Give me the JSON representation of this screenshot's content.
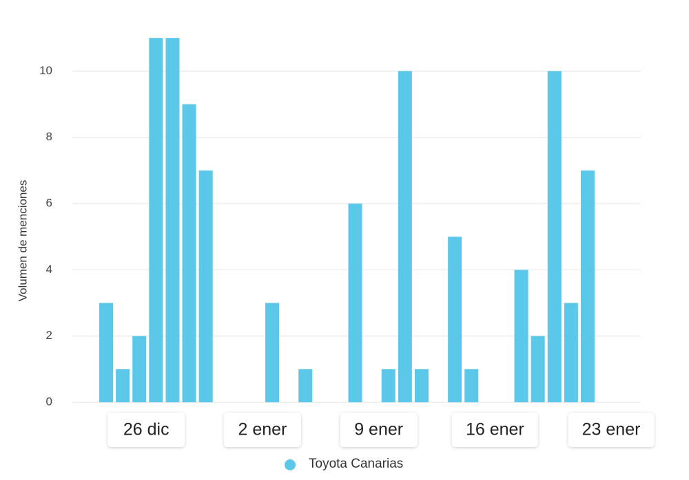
{
  "chart_data": {
    "type": "bar",
    "y_axis_label": "Volumen de menciones",
    "categories": [
      null,
      null,
      "26 dic",
      null,
      null,
      null,
      null,
      null,
      null,
      "2 ener",
      null,
      null,
      null,
      null,
      null,
      null,
      "9 ener",
      null,
      null,
      null,
      null,
      null,
      null,
      "16 ener",
      null,
      null,
      null,
      null,
      null,
      null,
      "23 ener"
    ],
    "series": [
      {
        "name": "Toyota Canarias",
        "color": "#5bc8ea",
        "values": [
          3,
          1,
          2,
          11,
          11,
          9,
          7,
          0,
          0,
          0,
          3,
          0,
          1,
          0,
          0,
          6,
          0,
          1,
          10,
          1,
          0,
          5,
          1,
          0,
          0,
          4,
          2,
          10,
          3,
          7,
          0
        ]
      }
    ],
    "ylim": [
      0,
      12
    ],
    "yticks": [
      0,
      2,
      4,
      6,
      8,
      10
    ],
    "grid": true
  }
}
